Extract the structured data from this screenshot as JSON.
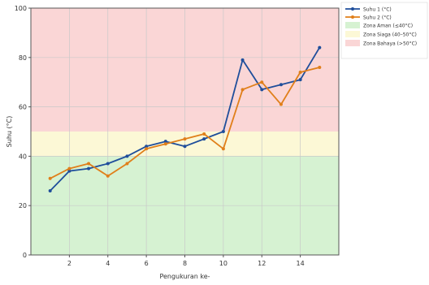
{
  "chart_data": {
    "type": "line",
    "xlabel": "Pengukuran ke-",
    "ylabel": "Suhu (°C)",
    "xlim": [
      0,
      16
    ],
    "ylim": [
      0,
      100
    ],
    "x_ticks": [
      2,
      4,
      6,
      8,
      10,
      12,
      14
    ],
    "y_ticks": [
      0,
      20,
      40,
      60,
      80,
      100
    ],
    "x": [
      1,
      2,
      3,
      4,
      5,
      6,
      7,
      8,
      9,
      10,
      11,
      12,
      13,
      14,
      15
    ],
    "series": [
      {
        "name": "Suhu 1 (°C)",
        "color": "#1f4e9b",
        "values": [
          26,
          34,
          35,
          37,
          40,
          44,
          46,
          44,
          47,
          50,
          79,
          67,
          69,
          71,
          84
        ]
      },
      {
        "name": "Suhu 2 (°C)",
        "color": "#e07f1a",
        "values": [
          31,
          35,
          37,
          32,
          37,
          43,
          45,
          47,
          49,
          43,
          67,
          70,
          61,
          74,
          76
        ]
      }
    ],
    "zones": [
      {
        "name": "Zona Aman (≤40°C)",
        "from": 0,
        "to": 40,
        "color": "#d6f2d2"
      },
      {
        "name": "Zona Siaga (40–50°C)",
        "from": 40,
        "to": 50,
        "color": "#fcf8d6"
      },
      {
        "name": "Zona Bahaya (>50°C)",
        "from": 50,
        "to": 100,
        "color": "#fad6d6"
      }
    ],
    "grid": true,
    "legend_position": "outside-right"
  }
}
